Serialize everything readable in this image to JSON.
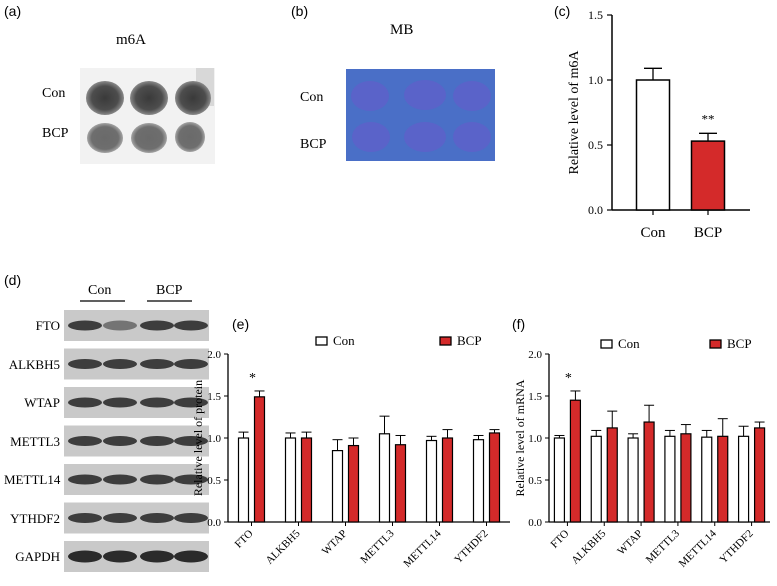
{
  "panels": {
    "a": {
      "letter": "(a)",
      "title": "m6A",
      "rows": [
        "Con",
        "BCP"
      ]
    },
    "b": {
      "letter": "(b)",
      "title": "MB",
      "rows": [
        "Con",
        "BCP"
      ],
      "membrane_color": "#4a6fc7",
      "dot_color": "#5a63c9"
    },
    "c": {
      "letter": "(c)"
    },
    "d": {
      "letter": "(d)",
      "groups": [
        "Con",
        "BCP"
      ],
      "proteins": [
        "FTO",
        "ALKBH5",
        "WTAP",
        "METTL3",
        "METTL14",
        "YTHDF2",
        "GAPDH"
      ]
    },
    "e": {
      "letter": "(e)"
    },
    "f": {
      "letter": "(f)"
    }
  },
  "chart_data": [
    {
      "id": "c",
      "type": "bar",
      "categories": [
        "Con",
        "BCP"
      ],
      "values": [
        1.0,
        0.53
      ],
      "errors": [
        0.09,
        0.06
      ],
      "colors": [
        "#ffffff",
        "#d42a2a"
      ],
      "annotations": [
        "",
        "**"
      ],
      "ylabel": "Relative level of m6A",
      "ylim": [
        0,
        1.5
      ],
      "yticks": [
        "0.0",
        "0.5",
        "1.0",
        "1.5"
      ]
    },
    {
      "id": "e",
      "type": "bar",
      "categories": [
        "FTO",
        "ALKBH5",
        "WTAP",
        "METTL3",
        "METTL14",
        "YTHDF2"
      ],
      "series": [
        {
          "name": "Con",
          "color": "#ffffff",
          "values": [
            1.0,
            1.0,
            0.85,
            1.05,
            0.97,
            0.98
          ],
          "errors": [
            0.07,
            0.06,
            0.13,
            0.21,
            0.05,
            0.05
          ]
        },
        {
          "name": "BCP",
          "color": "#d42a2a",
          "values": [
            1.49,
            1.0,
            0.91,
            0.92,
            1.0,
            1.06
          ],
          "errors": [
            0.07,
            0.07,
            0.09,
            0.11,
            0.1,
            0.04
          ]
        }
      ],
      "annotations": [
        "*",
        "",
        "",
        "",
        "",
        ""
      ],
      "ylabel": "Relative level of protein",
      "ylim": [
        0,
        2.0
      ],
      "yticks": [
        "0.0",
        "0.5",
        "1.0",
        "1.5",
        "2.0"
      ]
    },
    {
      "id": "f",
      "type": "bar",
      "categories": [
        "FTO",
        "ALKBH5",
        "WTAP",
        "METTL3",
        "METTL14",
        "YTHDF2"
      ],
      "series": [
        {
          "name": "Con",
          "color": "#ffffff",
          "values": [
            1.0,
            1.02,
            1.0,
            1.02,
            1.01,
            1.02
          ],
          "errors": [
            0.03,
            0.07,
            0.05,
            0.07,
            0.08,
            0.12
          ]
        },
        {
          "name": "BCP",
          "color": "#d42a2a",
          "values": [
            1.45,
            1.12,
            1.19,
            1.05,
            1.02,
            1.12
          ],
          "errors": [
            0.11,
            0.2,
            0.2,
            0.11,
            0.21,
            0.07
          ]
        }
      ],
      "annotations": [
        "*",
        "",
        "",
        "",
        "",
        ""
      ],
      "ylabel": "Relative level of mRNA",
      "ylim": [
        0,
        2.0
      ],
      "yticks": [
        "0.0",
        "0.5",
        "1.0",
        "1.5",
        "2.0"
      ]
    }
  ]
}
